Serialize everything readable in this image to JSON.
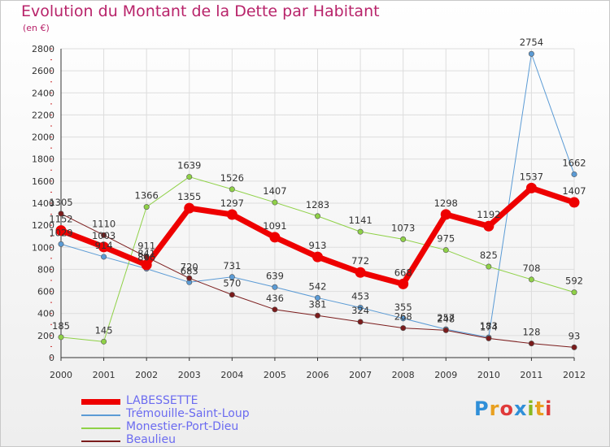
{
  "title": "Evolution du Montant de la Dette par Habitant",
  "unit_label": "(en €)",
  "logo": {
    "text": "Proxiti",
    "colors": [
      "#2f8fd8",
      "#e8a020",
      "#e03a3a",
      "#2f8fd8",
      "#88b820",
      "#e8a020",
      "#e03a3a"
    ]
  },
  "colors": {
    "title": "#b8236a",
    "legend_text": "#6b6bf0",
    "grid": "#dddddd",
    "axis": "#333333"
  },
  "chart_data": {
    "type": "line",
    "title": "Evolution du Montant de la Dette par Habitant",
    "ylabel": "(en €)",
    "xlabel": "",
    "x": [
      "2000",
      "2001",
      "2002",
      "2003",
      "2004",
      "2005",
      "2006",
      "2007",
      "2008",
      "2009",
      "2010",
      "2011",
      "2012"
    ],
    "ylim": [
      0,
      2800
    ],
    "yticks": [
      0,
      200,
      400,
      600,
      800,
      1000,
      1200,
      1400,
      1600,
      1800,
      2000,
      2200,
      2400,
      2600,
      2800
    ],
    "grid": true,
    "legend_position": "bottom-left",
    "series": [
      {
        "name": "LABESSETTE",
        "color": "#ee0000",
        "width": 7,
        "values": [
          1152,
          1003,
          841,
          1355,
          1297,
          1091,
          913,
          772,
          668,
          1298,
          1192,
          1537,
          1407
        ]
      },
      {
        "name": "Trémouille-Saint-Loup",
        "color": "#5b9bd5",
        "width": 1,
        "values": [
          1029,
          914,
          806,
          683,
          731,
          639,
          542,
          453,
          355,
          257,
          183,
          2754,
          1662
        ]
      },
      {
        "name": "Monestier-Port-Dieu",
        "color": "#8fd147",
        "width": 1,
        "values": [
          185,
          145,
          1366,
          1639,
          1526,
          1407,
          1283,
          1141,
          1073,
          975,
          825,
          708,
          592
        ]
      },
      {
        "name": "Beaulieu",
        "color": "#7b1c1c",
        "width": 1,
        "values": [
          1305,
          1110,
          911,
          720,
          570,
          436,
          381,
          324,
          268,
          248,
          174,
          128,
          93
        ]
      }
    ]
  }
}
